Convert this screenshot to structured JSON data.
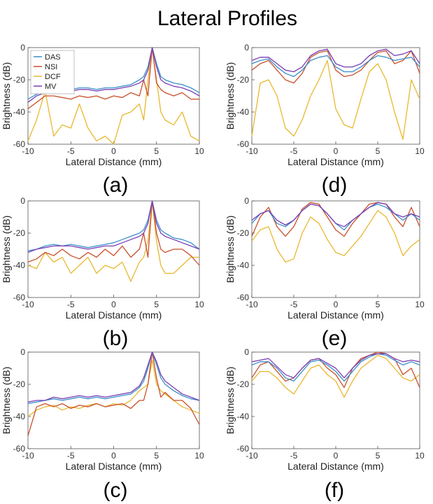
{
  "title": "Lateral Profiles",
  "legend": [
    "DAS",
    "NSI",
    "DCF",
    "MV"
  ],
  "colors": {
    "DAS": "#3a8fc8",
    "NSI": "#c8502a",
    "DCF": "#e8b830",
    "MV": "#7a3fb5"
  },
  "chart_data": [
    {
      "label": "(a)",
      "type": "line",
      "xlabel": "Lateral Distance (mm)",
      "ylabel": "Brightness (dB)",
      "xlim": [
        -10,
        10
      ],
      "ylim": [
        -60,
        0
      ],
      "xticks": [
        -10,
        -5,
        0,
        5,
        10
      ],
      "yticks": [
        -60,
        -40,
        -20,
        0
      ],
      "x": [
        -10,
        -9,
        -8,
        -7,
        -6,
        -5,
        -4,
        -3,
        -2,
        -1,
        0,
        1,
        2,
        3,
        3.5,
        4,
        4.5,
        5,
        5.5,
        6,
        7,
        8,
        9,
        10
      ],
      "series": [
        {
          "name": "DAS",
          "values": [
            -32,
            -29,
            -27,
            -25,
            -26,
            -26,
            -25,
            -25,
            -26,
            -25,
            -25,
            -24,
            -23,
            -20,
            -18,
            -12,
            0,
            -10,
            -18,
            -20,
            -22,
            -23,
            -25,
            -28
          ]
        },
        {
          "name": "NSI",
          "values": [
            -38,
            -34,
            -30,
            -30,
            -31,
            -32,
            -30,
            -31,
            -30,
            -32,
            -30,
            -31,
            -28,
            -30,
            -20,
            -30,
            0,
            -22,
            -26,
            -28,
            -30,
            -28,
            -32,
            -32
          ]
        },
        {
          "name": "DCF",
          "values": [
            -58,
            -45,
            -27,
            -55,
            -48,
            -50,
            -35,
            -50,
            -58,
            -55,
            -60,
            -42,
            -40,
            -35,
            -45,
            -20,
            0,
            -20,
            -40,
            -45,
            -48,
            -40,
            -55,
            -58
          ]
        },
        {
          "name": "MV",
          "values": [
            -34,
            -30,
            -28,
            -27,
            -27,
            -27,
            -26,
            -26,
            -27,
            -26,
            -26,
            -25,
            -24,
            -22,
            -20,
            -14,
            0,
            -12,
            -20,
            -22,
            -24,
            -25,
            -27,
            -30
          ]
        }
      ]
    },
    {
      "label": "(d)",
      "type": "line",
      "xlabel": "Lateral Distance (mm)",
      "ylabel": "Brightness (dB)",
      "xlim": [
        -10,
        10
      ],
      "ylim": [
        -60,
        0
      ],
      "xticks": [
        -10,
        -5,
        0,
        5,
        10
      ],
      "yticks": [
        -60,
        -40,
        -20,
        0
      ],
      "x": [
        -10,
        -9,
        -8,
        -7,
        -6,
        -5,
        -4,
        -3,
        -2,
        -1,
        0,
        1,
        2,
        3,
        4,
        5,
        6,
        7,
        8,
        9,
        10
      ],
      "series": [
        {
          "name": "DAS",
          "values": [
            -10,
            -8,
            -7,
            -12,
            -16,
            -18,
            -14,
            -8,
            -6,
            -5,
            -12,
            -15,
            -15,
            -12,
            -8,
            -5,
            -6,
            -8,
            -7,
            -6,
            -12
          ]
        },
        {
          "name": "NSI",
          "values": [
            -14,
            -10,
            -8,
            -14,
            -20,
            -22,
            -16,
            -6,
            -3,
            -2,
            -14,
            -18,
            -17,
            -14,
            -8,
            -3,
            -2,
            -10,
            -8,
            -2,
            -16
          ]
        },
        {
          "name": "DCF",
          "values": [
            -55,
            -22,
            -20,
            -30,
            -50,
            -55,
            -45,
            -30,
            -20,
            -8,
            -38,
            -48,
            -50,
            -32,
            -15,
            -10,
            -20,
            -40,
            -57,
            -20,
            -32
          ]
        },
        {
          "name": "MV",
          "values": [
            -8,
            -6,
            -6,
            -10,
            -14,
            -15,
            -12,
            -5,
            -2,
            -1,
            -10,
            -12,
            -12,
            -10,
            -5,
            -2,
            -1,
            -5,
            -4,
            -2,
            -10
          ]
        }
      ]
    },
    {
      "label": "(b)",
      "type": "line",
      "xlabel": "Lateral Distance (mm)",
      "ylabel": "Brightness (dB)",
      "xlim": [
        -10,
        10
      ],
      "ylim": [
        -60,
        0
      ],
      "xticks": [
        -10,
        -5,
        0,
        5,
        10
      ],
      "yticks": [
        -60,
        -40,
        -20,
        0
      ],
      "x": [
        -10,
        -9,
        -8,
        -7,
        -6,
        -5,
        -4,
        -3,
        -2,
        -1,
        0,
        1,
        2,
        3,
        3.5,
        4,
        4.5,
        5,
        5.5,
        6,
        7,
        8,
        9,
        10
      ],
      "series": [
        {
          "name": "DAS",
          "values": [
            -31,
            -30,
            -28,
            -27,
            -28,
            -27,
            -28,
            -29,
            -28,
            -27,
            -26,
            -24,
            -22,
            -20,
            -18,
            -12,
            0,
            -12,
            -18,
            -20,
            -23,
            -24,
            -26,
            -30
          ]
        },
        {
          "name": "NSI",
          "values": [
            -38,
            -36,
            -32,
            -34,
            -30,
            -34,
            -36,
            -32,
            -35,
            -30,
            -34,
            -28,
            -35,
            -30,
            -20,
            -35,
            0,
            -20,
            -30,
            -32,
            -30,
            -30,
            -34,
            -40
          ]
        },
        {
          "name": "DCF",
          "values": [
            -40,
            -42,
            -32,
            -38,
            -35,
            -45,
            -40,
            -35,
            -45,
            -40,
            -42,
            -38,
            -50,
            -38,
            -35,
            -25,
            0,
            -25,
            -40,
            -45,
            -45,
            -40,
            -35,
            -35
          ]
        },
        {
          "name": "MV",
          "values": [
            -32,
            -30,
            -29,
            -28,
            -28,
            -28,
            -29,
            -30,
            -29,
            -28,
            -28,
            -26,
            -24,
            -22,
            -20,
            -14,
            0,
            -14,
            -20,
            -22,
            -24,
            -26,
            -28,
            -30
          ]
        }
      ]
    },
    {
      "label": "(e)",
      "type": "line",
      "xlabel": "Lateral Distance (mm)",
      "ylabel": "Brightness (dB)",
      "xlim": [
        -10,
        10
      ],
      "ylim": [
        -60,
        0
      ],
      "xticks": [
        -10,
        -5,
        0,
        5,
        10
      ],
      "yticks": [
        -60,
        -40,
        -20,
        0
      ],
      "x": [
        -10,
        -9,
        -8,
        -7,
        -6,
        -5,
        -4,
        -3,
        -2,
        -1,
        0,
        1,
        2,
        3,
        4,
        5,
        6,
        7,
        8,
        9,
        10
      ],
      "series": [
        {
          "name": "DAS",
          "values": [
            -14,
            -8,
            -6,
            -14,
            -16,
            -12,
            -6,
            -2,
            -3,
            -8,
            -14,
            -18,
            -12,
            -8,
            -4,
            -2,
            -4,
            -8,
            -12,
            -8,
            -12
          ]
        },
        {
          "name": "NSI",
          "values": [
            -22,
            -10,
            -4,
            -16,
            -22,
            -16,
            -5,
            -1,
            -2,
            -10,
            -18,
            -22,
            -14,
            -8,
            -2,
            -1,
            -2,
            -10,
            -16,
            -4,
            -16
          ]
        },
        {
          "name": "DCF",
          "values": [
            -25,
            -18,
            -16,
            -30,
            -38,
            -36,
            -20,
            -10,
            -14,
            -24,
            -32,
            -34,
            -28,
            -22,
            -14,
            -6,
            -10,
            -20,
            -34,
            -28,
            -24
          ]
        },
        {
          "name": "MV",
          "values": [
            -12,
            -8,
            -6,
            -12,
            -15,
            -12,
            -6,
            -2,
            -3,
            -8,
            -14,
            -16,
            -12,
            -8,
            -4,
            -1,
            -2,
            -8,
            -10,
            -8,
            -10
          ]
        }
      ]
    },
    {
      "label": "(c)",
      "type": "line",
      "xlabel": "Lateral Distance (mm)",
      "ylabel": "Brightness (dB)",
      "xlim": [
        -10,
        10
      ],
      "ylim": [
        -60,
        0
      ],
      "xticks": [
        -10,
        -5,
        0,
        5,
        10
      ],
      "yticks": [
        -60,
        -40,
        -20,
        0
      ],
      "x": [
        -10,
        -9,
        -8,
        -7,
        -6,
        -5,
        -4,
        -3,
        -2,
        -1,
        0,
        1,
        2,
        3,
        3.5,
        4,
        4.5,
        5,
        5.5,
        6,
        7,
        8,
        9,
        10
      ],
      "series": [
        {
          "name": "DAS",
          "values": [
            -32,
            -31,
            -30,
            -29,
            -30,
            -29,
            -28,
            -29,
            -28,
            -29,
            -28,
            -27,
            -26,
            -22,
            -18,
            -10,
            0,
            -8,
            -16,
            -20,
            -24,
            -27,
            -29,
            -30
          ]
        },
        {
          "name": "NSI",
          "values": [
            -52,
            -34,
            -32,
            -34,
            -32,
            -35,
            -33,
            -34,
            -32,
            -34,
            -33,
            -32,
            -35,
            -30,
            -30,
            -20,
            0,
            -16,
            -28,
            -25,
            -30,
            -30,
            -35,
            -45
          ]
        },
        {
          "name": "DCF",
          "values": [
            -40,
            -36,
            -34,
            -33,
            -36,
            -34,
            -35,
            -33,
            -32,
            -34,
            -32,
            -33,
            -30,
            -24,
            -22,
            -20,
            -5,
            -20,
            -24,
            -26,
            -30,
            -34,
            -36,
            -38
          ]
        },
        {
          "name": "MV",
          "values": [
            -31,
            -30,
            -30,
            -28,
            -29,
            -28,
            -27,
            -28,
            -27,
            -28,
            -27,
            -26,
            -25,
            -21,
            -16,
            -8,
            0,
            -6,
            -14,
            -18,
            -22,
            -26,
            -28,
            -30
          ]
        }
      ]
    },
    {
      "label": "(f)",
      "type": "line",
      "xlabel": "Lateral Distance (mm)",
      "ylabel": "Brightness (dB)",
      "xlim": [
        -10,
        10
      ],
      "ylim": [
        -60,
        0
      ],
      "xticks": [
        -10,
        -5,
        0,
        5,
        10
      ],
      "yticks": [
        -60,
        -40,
        -20,
        0
      ],
      "x": [
        -10,
        -9,
        -8,
        -7,
        -6,
        -5,
        -4,
        -3,
        -2,
        -1,
        0,
        1,
        2,
        3,
        4,
        5,
        6,
        7,
        8,
        9,
        10
      ],
      "series": [
        {
          "name": "DAS",
          "values": [
            -8,
            -6,
            -6,
            -10,
            -16,
            -18,
            -12,
            -6,
            -5,
            -8,
            -12,
            -18,
            -12,
            -6,
            -3,
            -1,
            -2,
            -5,
            -8,
            -6,
            -8
          ]
        },
        {
          "name": "NSI",
          "values": [
            -16,
            -8,
            -6,
            -12,
            -18,
            -16,
            -10,
            -5,
            -4,
            -10,
            -14,
            -22,
            -10,
            -4,
            -2,
            0,
            -1,
            -4,
            -14,
            -10,
            -22
          ]
        },
        {
          "name": "DCF",
          "values": [
            -18,
            -12,
            -12,
            -16,
            -22,
            -26,
            -18,
            -10,
            -8,
            -14,
            -18,
            -28,
            -18,
            -10,
            -6,
            -2,
            -4,
            -10,
            -16,
            -18,
            -14
          ]
        },
        {
          "name": "MV",
          "values": [
            -6,
            -5,
            -4,
            -9,
            -14,
            -16,
            -10,
            -5,
            -4,
            -7,
            -10,
            -16,
            -10,
            -5,
            -2,
            -1,
            -1,
            -4,
            -6,
            -5,
            -6
          ]
        }
      ]
    }
  ]
}
